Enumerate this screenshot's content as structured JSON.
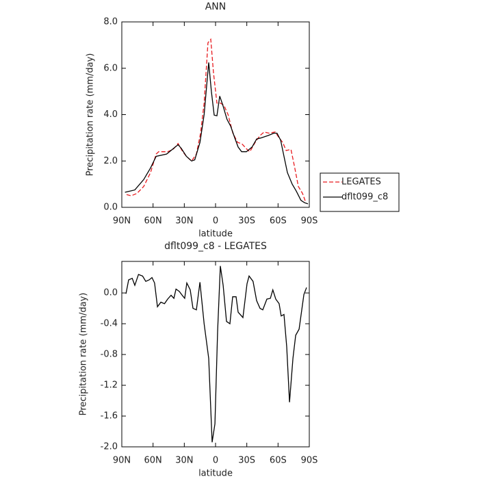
{
  "chart_data": [
    {
      "type": "line",
      "title": "ANN",
      "xlabel": "latitude",
      "ylabel": "Precipitation rate (mm/day)",
      "xlim": [
        90,
        -90
      ],
      "ylim": [
        0,
        8
      ],
      "xticks": [
        {
          "value": 90,
          "label": "90N"
        },
        {
          "value": 60,
          "label": "60N"
        },
        {
          "value": 30,
          "label": "30N"
        },
        0,
        {
          "value": -30,
          "label": "30S"
        },
        {
          "value": -60,
          "label": "60S"
        },
        {
          "value": -90,
          "label": "90S"
        }
      ],
      "yticks": [
        {
          "value": 0,
          "label": "0.0"
        },
        {
          "value": 2,
          "label": "2.0"
        },
        {
          "value": 4,
          "label": "4.0"
        },
        {
          "value": 6,
          "label": "6.0"
        },
        {
          "value": 8,
          "label": "8.0"
        }
      ],
      "series": [
        {
          "name": "LEGATES",
          "color": "#e8191d",
          "dash": true,
          "x": [
            85.4,
            81,
            75.5,
            69,
            62.4,
            57,
            54.5,
            46,
            40.7,
            36,
            31.5,
            28,
            23,
            18.4,
            14.4,
            11,
            7.3,
            4.6,
            2,
            -1.3,
            -4.6,
            -8,
            -12,
            -16.6,
            -21.2,
            -25,
            -30.2,
            -32.9,
            -38,
            -42.7,
            -46.7,
            -51.3,
            -57.2,
            -61,
            -64.5,
            -67.8,
            -72.4,
            -75.6,
            -79.5,
            -83.5,
            -86.7
          ],
          "values": [
            0.55,
            0.5,
            0.6,
            0.9,
            1.5,
            2.3,
            2.4,
            2.4,
            2.5,
            2.75,
            2.4,
            2.2,
            2.0,
            2.3,
            3.2,
            4.5,
            7.1,
            7.25,
            5.8,
            4.5,
            4.5,
            4.4,
            4.0,
            3.2,
            2.8,
            2.75,
            2.5,
            2.4,
            2.8,
            3.1,
            3.25,
            3.2,
            3.25,
            3.0,
            2.8,
            2.45,
            2.5,
            1.8,
            0.9,
            0.6,
            0.2
          ]
        },
        {
          "name": "dflt099_c8",
          "color": "#000000",
          "dash": false,
          "x": [
            87,
            77.5,
            69,
            62.4,
            57,
            47,
            36,
            33,
            28,
            23,
            20,
            15,
            11,
            6.6,
            4,
            1.3,
            -1.3,
            -4,
            -7,
            -11,
            -14.5,
            -18.4,
            -21.7,
            -25,
            -29.6,
            -35,
            -39.5,
            -44,
            -50.6,
            -56,
            -59,
            -62.5,
            -65.7,
            -69,
            -73.6,
            -77.5,
            -82,
            -85.4,
            -88.7
          ],
          "values": [
            0.65,
            0.75,
            1.2,
            1.7,
            2.2,
            2.3,
            2.7,
            2.55,
            2.2,
            2.0,
            2.05,
            2.8,
            4.0,
            6.25,
            5.0,
            3.98,
            3.95,
            4.8,
            4.4,
            3.8,
            3.5,
            3.0,
            2.6,
            2.4,
            2.4,
            2.6,
            2.95,
            3.0,
            3.1,
            3.2,
            3.2,
            2.9,
            2.2,
            1.5,
            1.0,
            0.7,
            0.3,
            0.2,
            0.15
          ]
        }
      ]
    },
    {
      "type": "line",
      "title": "dflt099_c8 - LEGATES",
      "xlabel": "latitude",
      "ylabel": "Precipitation rate (mm/day)",
      "xlim": [
        90,
        -90
      ],
      "ylim": [
        -2.0,
        0.41
      ],
      "xticks": [
        {
          "value": 90,
          "label": "90N"
        },
        {
          "value": 60,
          "label": "60N"
        },
        {
          "value": 30,
          "label": "30N"
        },
        0,
        {
          "value": -30,
          "label": "30S"
        },
        {
          "value": -60,
          "label": "60S"
        },
        {
          "value": -90,
          "label": "90S"
        }
      ],
      "yticks": [
        {
          "value": 0,
          "label": "0.0"
        },
        -0.4,
        -0.8,
        -1.2,
        -1.6,
        {
          "value": -2,
          "label": "-2.0"
        }
      ],
      "series": [
        {
          "color": "#000000",
          "dash": false,
          "x": [
            86,
            83.4,
            80,
            77.5,
            74,
            70,
            67,
            63.7,
            61,
            58.5,
            55.8,
            52.5,
            49,
            46,
            42.7,
            40,
            38,
            34.8,
            31.5,
            29.6,
            27.6,
            24.3,
            21.7,
            18.4,
            15,
            11,
            6.6,
            3.3,
            0.6,
            -2,
            -4.6,
            -7.3,
            -10.5,
            -13.8,
            -16.4,
            -19.7,
            -21.7,
            -26.3,
            -30.2,
            -32.2,
            -36,
            -39.4,
            -42.7,
            -45.3,
            -49.3,
            -52.6,
            -55,
            -57.8,
            -61,
            -63,
            -65.7,
            -68.3,
            -71,
            -74.3,
            -76.9,
            -80.2,
            -84.8,
            -87.4
          ],
          "values": [
            -0.01,
            0.17,
            0.19,
            0.1,
            0.24,
            0.22,
            0.15,
            0.17,
            0.2,
            0.13,
            -0.18,
            -0.12,
            -0.14,
            -0.08,
            -0.03,
            -0.07,
            0.05,
            0.02,
            -0.04,
            -0.07,
            0.13,
            0.04,
            -0.2,
            -0.22,
            0.14,
            -0.4,
            -0.85,
            -1.94,
            -1.7,
            -0.5,
            0.35,
            0.1,
            -0.37,
            -0.4,
            -0.05,
            -0.05,
            -0.25,
            -0.32,
            0.12,
            0.22,
            0.15,
            -0.1,
            -0.2,
            -0.22,
            -0.08,
            -0.07,
            0.04,
            -0.08,
            -0.14,
            -0.3,
            -0.28,
            -0.7,
            -1.42,
            -0.85,
            -0.55,
            -0.47,
            -0.02,
            0.07
          ]
        }
      ]
    }
  ]
}
